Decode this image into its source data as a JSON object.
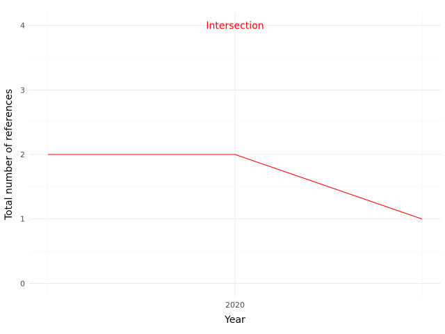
{
  "chart_data": {
    "type": "line",
    "x": [
      2019,
      2020,
      2021
    ],
    "series": [
      {
        "values": [
          2,
          2,
          1
        ],
        "color": "#ff0000"
      }
    ],
    "xticks": [
      {
        "value": 2020,
        "label": "2020"
      }
    ],
    "yticks": [
      0,
      1,
      2,
      3,
      4
    ],
    "xlabel": "Year",
    "ylabel": "Total number of references",
    "xlim": [
      2018.9,
      2021.1
    ],
    "ylim": [
      -0.2,
      4.2
    ],
    "grid": true,
    "annotations": [
      {
        "text": "Intersection",
        "x": 2020,
        "y": 4,
        "color": "#ff0000"
      }
    ],
    "colors": {
      "grid_major": "#ebebeb",
      "grid_minor": "#f5f5f5",
      "tick_text": "#4d4d4d"
    }
  }
}
